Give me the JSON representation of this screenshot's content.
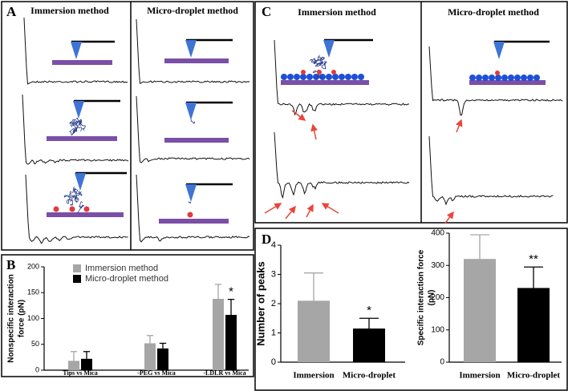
{
  "panel_labels": [
    "A",
    "B",
    "C",
    "D"
  ],
  "panel_a": {
    "headers": [
      "Immersion method",
      "Micro-droplet method"
    ]
  },
  "panel_c": {
    "headers": [
      "Immersion method",
      "Micro-droplet method"
    ]
  },
  "chart_data": [
    {
      "type": "bar",
      "ylabel": [
        "Nonspecific interaction",
        "force (pN)"
      ],
      "categories": [
        "Tips vs  Mica",
        "-PEG vs Mica",
        "-LDLR vs Mica"
      ],
      "series": [
        {
          "name": "Immersion method",
          "color": "#a6a6a6",
          "values": [
            18,
            52,
            138
          ],
          "errors": [
            18,
            15,
            28
          ]
        },
        {
          "name": "Micro-droplet method",
          "color": "#000000",
          "values": [
            22,
            42,
            107
          ],
          "errors": [
            14,
            10,
            30
          ]
        }
      ],
      "ylim": [
        0,
        200
      ],
      "yticks": [
        0,
        50,
        100,
        150,
        200
      ],
      "legend": "upper left",
      "annotation": "*"
    },
    {
      "type": "bar",
      "ylabel": [
        "Number of peaks"
      ],
      "categories": [
        "Immersion",
        "Micro-droplet"
      ],
      "values": [
        2.1,
        1.15
      ],
      "errors": [
        0.95,
        0.35
      ],
      "colors": [
        "#a6a6a6",
        "#000000"
      ],
      "ylim": [
        0,
        4
      ],
      "yticks": [
        0,
        1,
        2,
        3,
        4
      ],
      "annotation": "*"
    },
    {
      "type": "bar",
      "ylabel": [
        "Specific interaction force",
        "(pN)"
      ],
      "categories": [
        "Immersion",
        "Micro-droplet"
      ],
      "values": [
        320,
        230
      ],
      "errors": [
        75,
        65
      ],
      "colors": [
        "#a6a6a6",
        "#000000"
      ],
      "ylim": [
        0,
        400
      ],
      "yticks": [
        0,
        100,
        200,
        300,
        400
      ],
      "annotation": "**"
    }
  ]
}
